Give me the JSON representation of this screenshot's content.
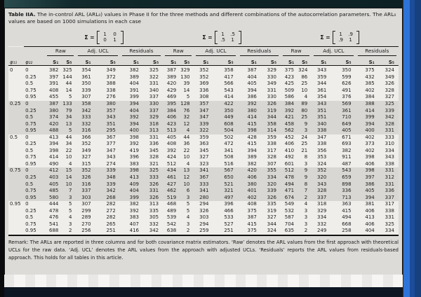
{
  "caption": {
    "label": "Table IIA.",
    "text": " The in-control ARL (ARL₀) values in Phase II for the three methods and different combinations of the autocorrelation parameters. The ARL₀ values are based on 1000 simulations in each case"
  },
  "matrices": [
    {
      "label": "Σ =",
      "v": [
        "1",
        "0",
        "0",
        "1"
      ]
    },
    {
      "label": "Σ =",
      "v": [
        "1",
        ".5",
        ".5",
        "1"
      ]
    },
    {
      "label": "Σ =",
      "v": [
        "1",
        ".9",
        ".9",
        "1"
      ]
    }
  ],
  "table": {
    "phi11_label": "φ₁₁",
    "phi22_label": "φ₂₂",
    "group_labels": [
      "Raw",
      "Adj. UCL",
      "Residuals"
    ],
    "s1_label": "S₁",
    "s5_label": "S₅",
    "rows": [
      {
        "phi11": "0",
        "phi22": "0",
        "v": [
          382,
          325,
          354,
          349,
          382,
          325,
          387,
          329,
          352,
          358,
          387,
          329,
          375,
          324,
          343,
          350,
          375,
          324
        ]
      },
      {
        "phi11": "",
        "phi22": "0.25",
        "v": [
          397,
          144,
          361,
          372,
          389,
          322,
          389,
          130,
          352,
          417,
          404,
          330,
          423,
          86,
          359,
          599,
          432,
          349
        ]
      },
      {
        "phi11": "",
        "phi22": "0.5",
        "v": [
          391,
          44,
          350,
          388,
          404,
          331,
          420,
          39,
          369,
          566,
          405,
          349,
          425,
          25,
          344,
          626,
          385,
          326
        ]
      },
      {
        "phi11": "",
        "phi22": "0.75",
        "v": [
          408,
          14,
          339,
          338,
          391,
          340,
          429,
          14,
          336,
          543,
          394,
          331,
          509,
          10,
          361,
          491,
          402,
          328
        ]
      },
      {
        "phi11": "",
        "phi22": "0.95",
        "v": [
          455,
          5,
          307,
          276,
          399,
          337,
          469,
          5,
          308,
          414,
          386,
          330,
          586,
          4,
          354,
          376,
          384,
          327
        ]
      },
      {
        "phi11": "0.25",
        "phi22": "0",
        "v": [
          387,
          133,
          358,
          380,
          394,
          330,
          395,
          128,
          357,
          422,
          392,
          326,
          384,
          89,
          343,
          569,
          388,
          325
        ]
      },
      {
        "phi11": "",
        "phi22": "0.25",
        "v": [
          380,
          79,
          342,
          357,
          404,
          337,
          384,
          76,
          347,
          350,
          380,
          319,
          392,
          80,
          351,
          361,
          414,
          339
        ]
      },
      {
        "phi11": "",
        "phi22": "0.5",
        "v": [
          374,
          34,
          333,
          343,
          392,
          329,
          406,
          32,
          347,
          449,
          414,
          344,
          421,
          25,
          351,
          710,
          399,
          342
        ]
      },
      {
        "phi11": "",
        "phi22": "0.75",
        "v": [
          420,
          13,
          332,
          351,
          394,
          318,
          423,
          12,
          339,
          608,
          415,
          358,
          458,
          9,
          340,
          649,
          394,
          328
        ]
      },
      {
        "phi11": "",
        "phi22": "0.95",
        "v": [
          488,
          5,
          316,
          295,
          400,
          313,
          513,
          4,
          322,
          504,
          398,
          314,
          562,
          3,
          338,
          405,
          400,
          331
        ]
      },
      {
        "phi11": "0.5",
        "phi22": "0",
        "v": [
          413,
          44,
          366,
          367,
          398,
          331,
          405,
          44,
          359,
          502,
          428,
          359,
          452,
          24,
          347,
          671,
          402,
          333
        ]
      },
      {
        "phi11": "",
        "phi22": "0.25",
        "v": [
          394,
          34,
          352,
          377,
          392,
          336,
          408,
          36,
          363,
          472,
          415,
          338,
          406,
          25,
          338,
          693,
          373,
          310
        ]
      },
      {
        "phi11": "",
        "phi22": "0.5",
        "v": [
          398,
          22,
          349,
          347,
          419,
          345,
          392,
          22,
          345,
          341,
          394,
          317,
          410,
          21,
          356,
          382,
          402,
          334
        ]
      },
      {
        "phi11": "",
        "phi22": "0.75",
        "v": [
          414,
          10,
          327,
          343,
          396,
          328,
          424,
          10,
          327,
          508,
          389,
          328,
          492,
          8,
          353,
          911,
          398,
          343
        ]
      },
      {
        "phi11": "",
        "phi22": "0.95",
        "v": [
          490,
          4,
          315,
          274,
          383,
          321,
          512,
          4,
          323,
          516,
          382,
          307,
          601,
          3,
          324,
          487,
          406,
          338
        ]
      },
      {
        "phi11": "0.75",
        "phi22": "0",
        "v": [
          412,
          15,
          352,
          339,
          398,
          325,
          434,
          13,
          341,
          567,
          420,
          355,
          512,
          9,
          352,
          543,
          398,
          331
        ]
      },
      {
        "phi11": "",
        "phi22": "0.25",
        "v": [
          403,
          14,
          326,
          348,
          413,
          333,
          461,
          12,
          367,
          650,
          406,
          334,
          478,
          9,
          320,
          659,
          397,
          312
        ]
      },
      {
        "phi11": "",
        "phi22": "0.5",
        "v": [
          405,
          10,
          316,
          339,
          409,
          326,
          427,
          10,
          333,
          521,
          380,
          320,
          494,
          8,
          343,
          898,
          386,
          331
        ]
      },
      {
        "phi11": "",
        "phi22": "0.75",
        "v": [
          485,
          7,
          337,
          342,
          404,
          331,
          462,
          6,
          341,
          321,
          401,
          339,
          471,
          7,
          328,
          336,
          405,
          336
        ]
      },
      {
        "phi11": "",
        "phi22": "0.95",
        "v": [
          580,
          3,
          303,
          268,
          399,
          326,
          519,
          3,
          280,
          497,
          402,
          326,
          674,
          2,
          337,
          713,
          394,
          337
        ]
      },
      {
        "phi11": "0.95",
        "phi22": "0",
        "v": [
          444,
          5,
          307,
          282,
          382,
          313,
          468,
          5,
          294,
          396,
          408,
          335,
          549,
          4,
          318,
          363,
          381,
          317
        ]
      },
      {
        "phi11": "",
        "phi22": "0.25",
        "v": [
          478,
          5,
          299,
          272,
          392,
          335,
          489,
          5,
          326,
          466,
          375,
          319,
          532,
          3,
          329,
          415,
          406,
          338
        ]
      },
      {
        "phi11": "",
        "phi22": "0.5",
        "v": [
          476,
          4,
          289,
          282,
          383,
          305,
          539,
          4,
          303,
          533,
          387,
          327,
          587,
          3,
          334,
          494,
          413,
          331
        ]
      },
      {
        "phi11": "",
        "phi22": "0.75",
        "v": [
          541,
          3,
          270,
          265,
          407,
          332,
          542,
          3,
          294,
          527,
          415,
          344,
          704,
          3,
          332,
          668,
          406,
          325
        ]
      },
      {
        "phi11": "",
        "phi22": "0.95",
        "v": [
          688,
          2,
          256,
          251,
          416,
          342,
          638,
          2,
          259,
          251,
          375,
          324,
          635,
          2,
          249,
          258,
          404,
          334
        ]
      }
    ]
  },
  "remark": "Remark: The ARLs are reported in three columns and for both covariance matrix estimators. ‘Raw’ denotes the ARL values from the first approach with theoretical UCLs for the raw data. ‘Adj. UCL’ denotes the ARL values from the approach with adjusted UCLs. ‘Residuals’ reports the ARL values from residuals-based approach. This holds for all tables in this article."
}
